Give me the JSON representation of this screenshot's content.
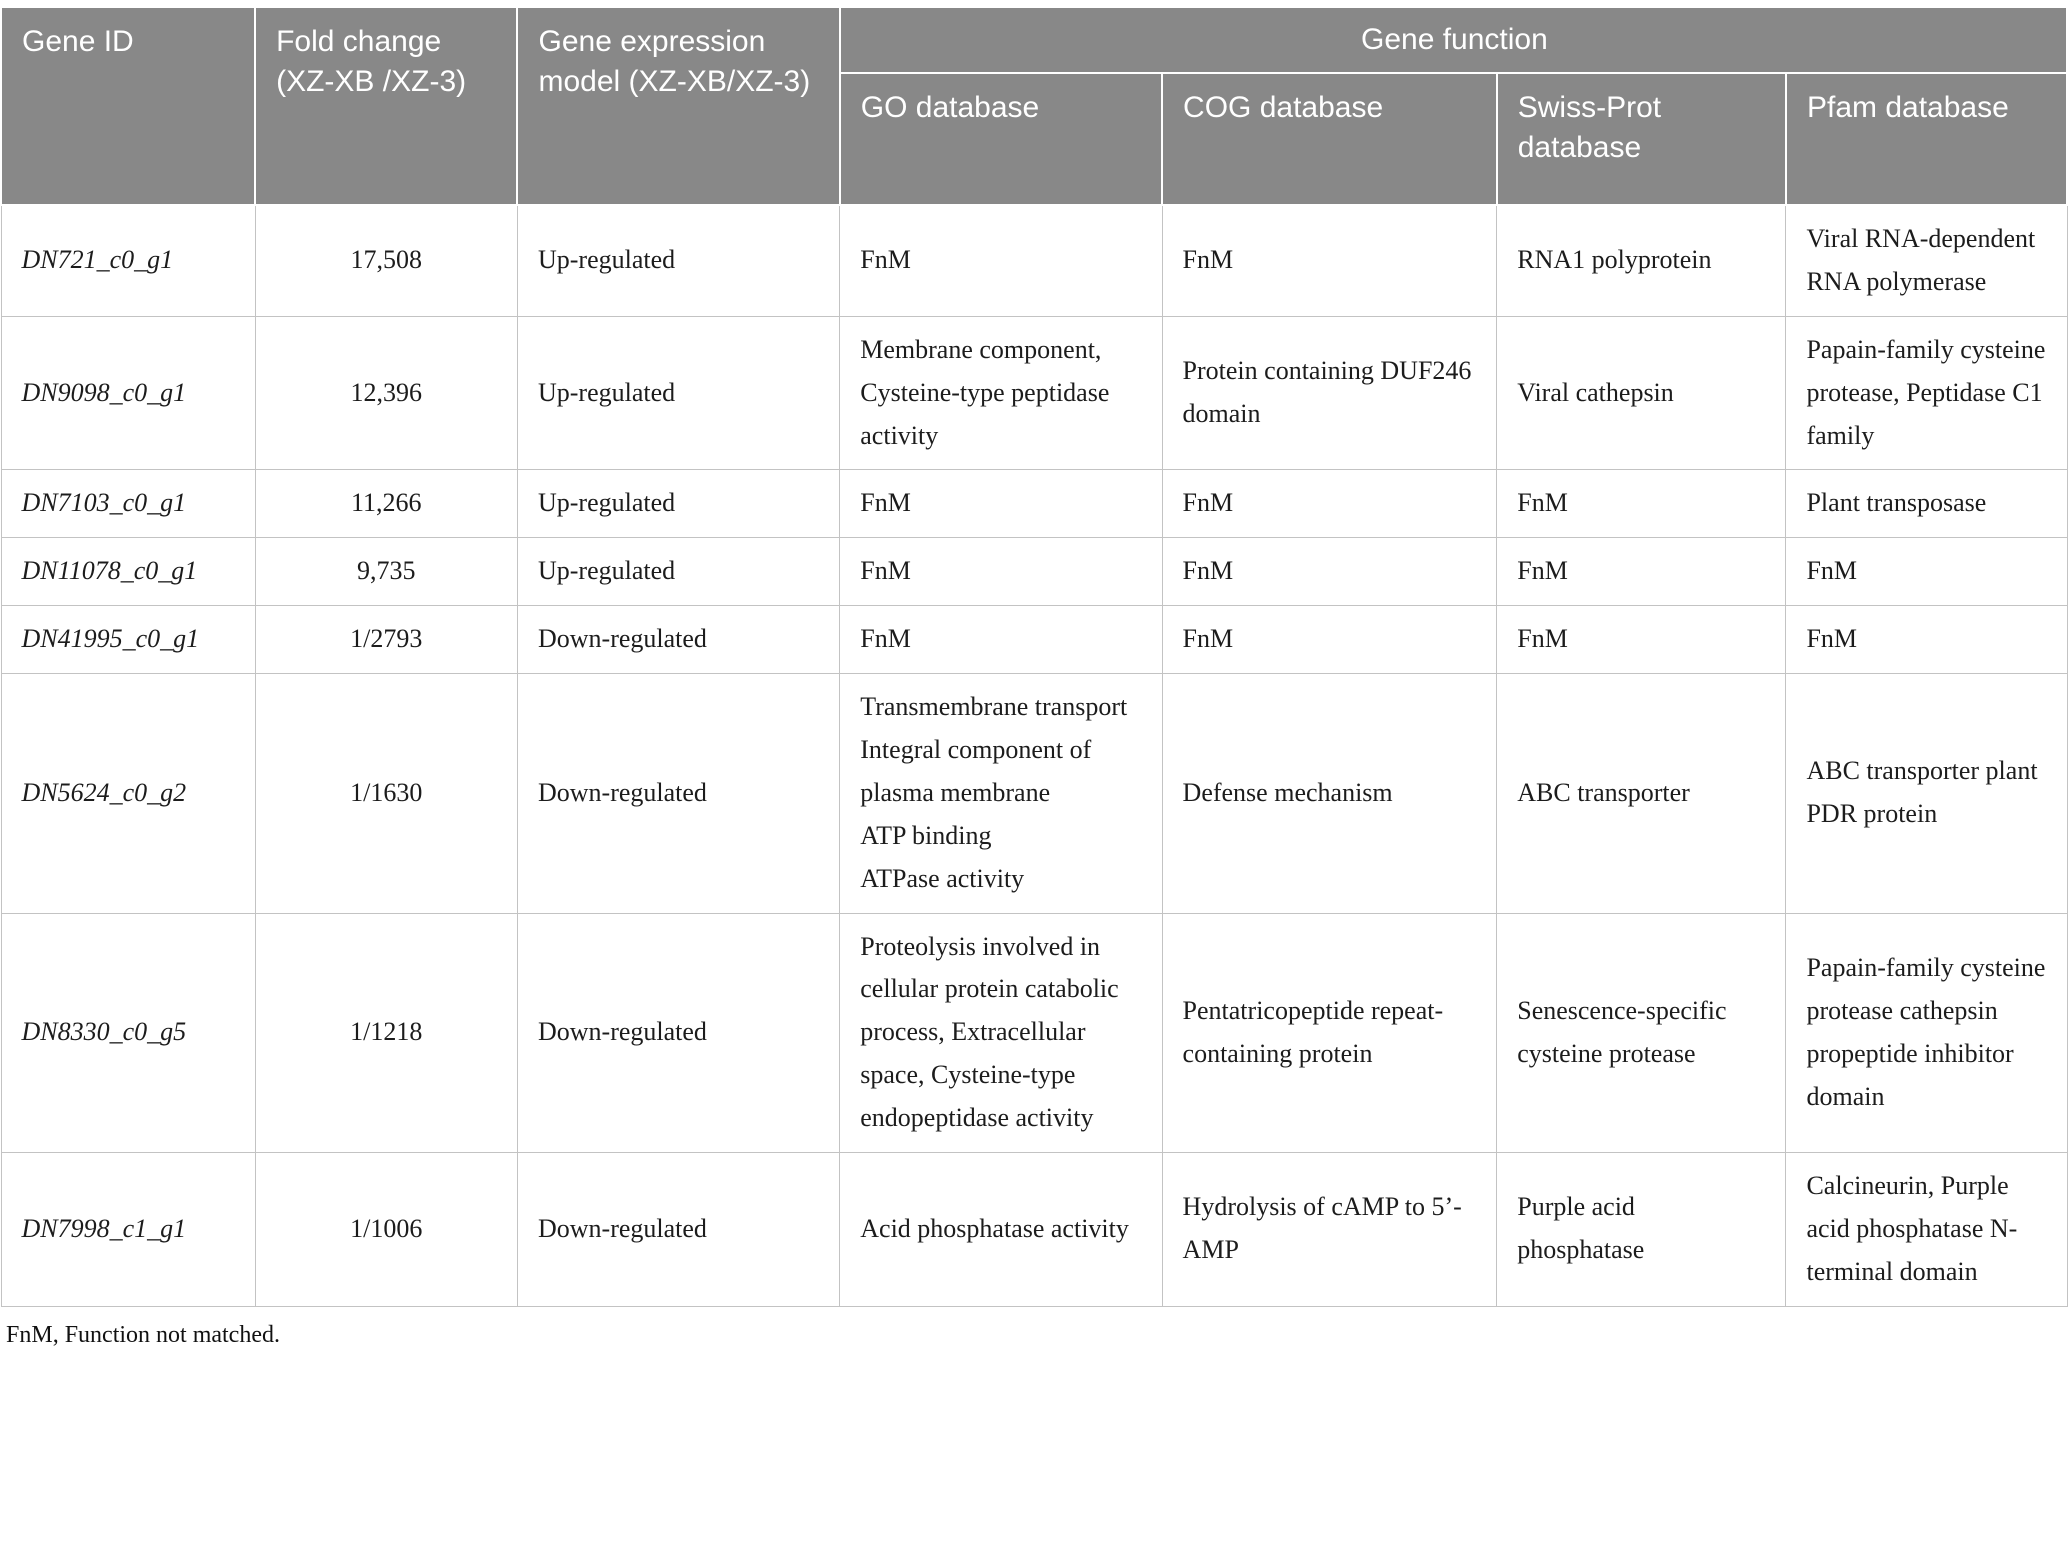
{
  "colors": {
    "header_bg": "#888888",
    "header_text": "#ffffff",
    "body_text": "#1c1c1c",
    "border": "#c3c3c3"
  },
  "table": {
    "header": {
      "gene_id": "Gene ID",
      "fold_change": "Fold change (XZ-XB /XZ-3)",
      "expression_model": "Gene expression model (XZ-XB/XZ-3)",
      "gene_function": "Gene function",
      "sub_columns": [
        "GO database",
        "COG database",
        "Swiss-Prot database",
        "Pfam database"
      ]
    },
    "rows": [
      {
        "gene_id": "DN721_c0_g1",
        "fold_change": "17,508",
        "expression_model": "Up-regulated",
        "go": "FnM",
        "cog": "FnM",
        "swiss_prot": "RNA1 polyprotein",
        "pfam": "Viral RNA-dependent RNA polymerase"
      },
      {
        "gene_id": "DN9098_c0_g1",
        "fold_change": "12,396",
        "expression_model": "Up-regulated",
        "go": "Membrane component, Cysteine-type peptidase activity",
        "cog": "Protein containing DUF246 domain",
        "swiss_prot": "Viral cathepsin",
        "pfam": "Papain-family cysteine protease, Peptidase C1 family"
      },
      {
        "gene_id": "DN7103_c0_g1",
        "fold_change": "11,266",
        "expression_model": "Up-regulated",
        "go": "FnM",
        "cog": "FnM",
        "swiss_prot": "FnM",
        "pfam": "Plant transposase"
      },
      {
        "gene_id": "DN11078_c0_g1",
        "fold_change": "9,735",
        "expression_model": "Up-regulated",
        "go": "FnM",
        "cog": "FnM",
        "swiss_prot": "FnM",
        "pfam": "FnM"
      },
      {
        "gene_id": "DN41995_c0_g1",
        "fold_change": "1/2793",
        "expression_model": "Down-regulated",
        "go": "FnM",
        "cog": "FnM",
        "swiss_prot": "FnM",
        "pfam": "FnM"
      },
      {
        "gene_id": "DN5624_c0_g2",
        "fold_change": "1/1630",
        "expression_model": "Down-regulated",
        "go": "Transmembrane transport\nIntegral component of plasma membrane\nATP binding\nATPase activity",
        "cog": "Defense mechanism",
        "swiss_prot": "ABC transporter",
        "pfam": "ABC transporter plant PDR protein"
      },
      {
        "gene_id": "DN8330_c0_g5",
        "fold_change": "1/1218",
        "expression_model": "Down-regulated",
        "go": "Proteolysis involved in cellular protein catabolic process, Extracellular space, Cysteine-type endopeptidase activity",
        "cog": "Pentatricopeptide repeat-containing protein",
        "swiss_prot": "Senescence-specific cysteine protease",
        "pfam": "Papain-family cysteine protease cathepsin propeptide inhibitor domain"
      },
      {
        "gene_id": "DN7998_c1_g1",
        "fold_change": "1/1006",
        "expression_model": "Down-regulated",
        "go": "Acid phosphatase activity",
        "cog": "Hydrolysis of cAMP to 5’-AMP",
        "swiss_prot": "Purple acid phosphatase",
        "pfam": "Calcineurin, Purple acid phosphatase N-terminal domain"
      }
    ],
    "footnote": "FnM, Function not matched."
  }
}
